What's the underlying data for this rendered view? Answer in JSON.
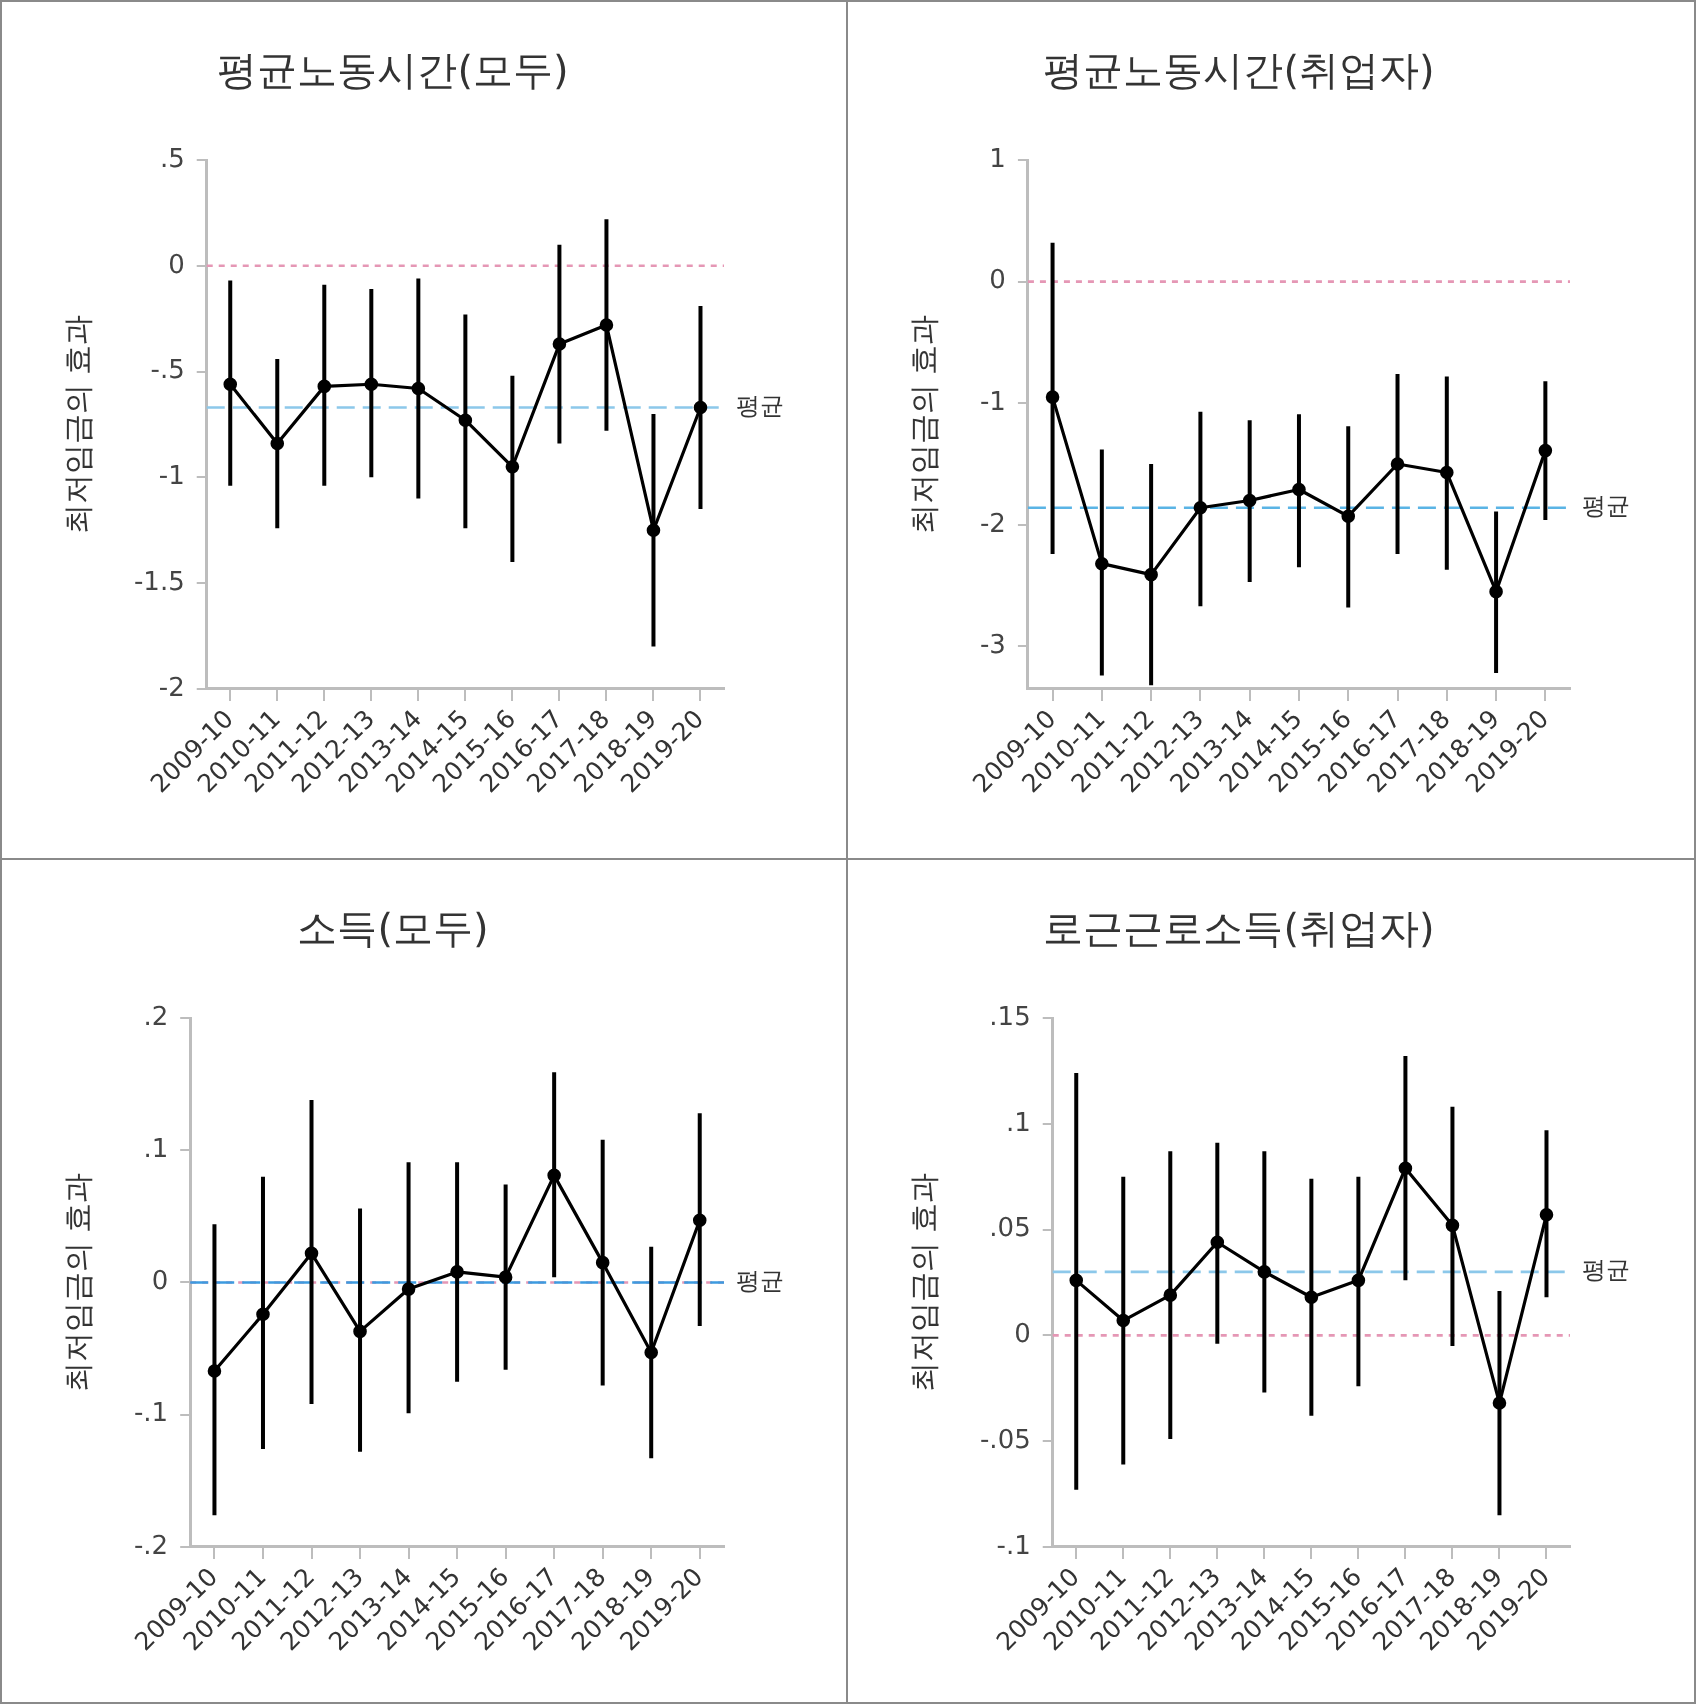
{
  "chart_data": [
    {
      "type": "line",
      "title": "평균노동시간(모두)",
      "ylabel": "최저임금의 효과",
      "categories": [
        "2009-10",
        "2010-11",
        "2011-12",
        "2012-13",
        "2013-14",
        "2014-15",
        "2015-16",
        "2016-17",
        "2017-18",
        "2018-19",
        "2019-20"
      ],
      "series": [
        {
          "color": "#000000",
          "values": [
            -0.56,
            -0.84,
            -0.57,
            -0.56,
            -0.58,
            -0.73,
            -0.95,
            -0.37,
            -0.28,
            -1.25,
            -0.67
          ],
          "errors": [
            [
              -1.04,
              -0.07
            ],
            [
              -1.24,
              -0.44
            ],
            [
              -1.04,
              -0.09
            ],
            [
              -1.0,
              -0.11
            ],
            [
              -1.1,
              -0.06
            ],
            [
              -1.24,
              -0.23
            ],
            [
              -1.4,
              -0.52
            ],
            [
              -0.84,
              0.1
            ],
            [
              -0.78,
              0.22
            ],
            [
              -1.8,
              -0.7
            ],
            [
              -1.15,
              -0.19
            ]
          ]
        }
      ],
      "ylim": [
        -2,
        0.5
      ],
      "yticks": [
        {
          "value": 0.5,
          "label": ".5"
        },
        0,
        {
          "value": -0.5,
          "label": "-.5"
        },
        -1,
        -1.5,
        -2
      ],
      "marker": "circle",
      "ref_lines": [
        {
          "axis": "y",
          "value": 0,
          "color": "#e597b5",
          "line_style": "dotted"
        },
        {
          "axis": "y",
          "value": -0.67,
          "label": "평균",
          "color": "#8cc8ea",
          "line_style": "dashed"
        }
      ]
    },
    {
      "type": "line",
      "title": "평균노동시간(취업자)",
      "ylabel": "최저임금의 효과",
      "categories": [
        "2009-10",
        "2010-11",
        "2011-12",
        "2012-13",
        "2013-14",
        "2014-15",
        "2015-16",
        "2016-17",
        "2017-18",
        "2018-19",
        "2019-20"
      ],
      "series": [
        {
          "color": "#000000",
          "values": [
            -0.95,
            -2.32,
            -2.41,
            -1.86,
            -1.8,
            -1.71,
            -1.93,
            -1.5,
            -1.57,
            -2.55,
            -1.39
          ],
          "errors": [
            [
              -2.24,
              0.32
            ],
            [
              -3.24,
              -1.38
            ],
            [
              -3.32,
              -1.5
            ],
            [
              -2.67,
              -1.07
            ],
            [
              -2.47,
              -1.14
            ],
            [
              -2.35,
              -1.09
            ],
            [
              -2.68,
              -1.19
            ],
            [
              -2.24,
              -0.76
            ],
            [
              -2.37,
              -0.78
            ],
            [
              -3.22,
              -1.89
            ],
            [
              -1.96,
              -0.82
            ]
          ]
        }
      ],
      "ylim": [
        -3.35,
        1
      ],
      "yticks": [
        1,
        0,
        -1,
        -2,
        -3
      ],
      "marker": "circle",
      "ref_lines": [
        {
          "axis": "y",
          "value": 0,
          "color": "#e597b5",
          "line_style": "dotted"
        },
        {
          "axis": "y",
          "value": -1.86,
          "label": "평균",
          "color": "#5ab4e5",
          "line_style": "dashed"
        }
      ]
    },
    {
      "type": "line",
      "title": "소득(모두)",
      "ylabel": "최저임금의 효과",
      "categories": [
        "2009-10",
        "2010-11",
        "2011-12",
        "2012-13",
        "2013-14",
        "2014-15",
        "2015-16",
        "2016-17",
        "2017-18",
        "2018-19",
        "2019-20"
      ],
      "series": [
        {
          "color": "#000000",
          "values": [
            -0.067,
            -0.024,
            0.022,
            -0.037,
            -0.005,
            0.008,
            0.004,
            0.081,
            0.015,
            -0.053,
            0.047
          ],
          "errors": [
            [
              -0.176,
              0.044
            ],
            [
              -0.126,
              0.08
            ],
            [
              -0.092,
              0.138
            ],
            [
              -0.128,
              0.056
            ],
            [
              -0.099,
              0.091
            ],
            [
              -0.075,
              0.091
            ],
            [
              -0.066,
              0.074
            ],
            [
              0.004,
              0.159
            ],
            [
              -0.078,
              0.108
            ],
            [
              -0.133,
              0.027
            ],
            [
              -0.033,
              0.128
            ]
          ]
        }
      ],
      "ylim": [
        -0.2,
        0.2
      ],
      "yticks": [
        {
          "value": 0.2,
          "label": ".2"
        },
        {
          "value": 0.1,
          "label": ".1"
        },
        0,
        {
          "value": -0.1,
          "label": "-.1"
        },
        {
          "value": -0.2,
          "label": "-.2"
        }
      ],
      "marker": "circle",
      "ref_lines": [
        {
          "axis": "y",
          "value": 0,
          "color": "#e597b5",
          "line_style": "dotted"
        },
        {
          "axis": "y",
          "value": 0,
          "label": "평균",
          "color": "#3c9be0",
          "line_style": "dashed"
        }
      ]
    },
    {
      "type": "line",
      "title": "로근근로소득(취업자)",
      "ylabel": "최저임금의 효과",
      "categories": [
        "2009-10",
        "2010-11",
        "2011-12",
        "2012-13",
        "2013-14",
        "2014-15",
        "2015-16",
        "2016-17",
        "2017-18",
        "2018-19",
        "2019-20"
      ],
      "series": [
        {
          "color": "#000000",
          "values": [
            0.026,
            0.007,
            0.019,
            0.044,
            0.03,
            0.018,
            0.026,
            0.079,
            0.052,
            -0.032,
            0.057
          ],
          "errors": [
            [
              -0.073,
              0.124
            ],
            [
              -0.061,
              0.075
            ],
            [
              -0.049,
              0.087
            ],
            [
              -0.004,
              0.091
            ],
            [
              -0.027,
              0.087
            ],
            [
              -0.038,
              0.074
            ],
            [
              -0.024,
              0.075
            ],
            [
              0.026,
              0.132
            ],
            [
              -0.005,
              0.108
            ],
            [
              -0.085,
              0.021
            ],
            [
              0.018,
              0.097
            ]
          ]
        }
      ],
      "ylim": [
        -0.1,
        0.15
      ],
      "yticks": [
        {
          "value": 0.15,
          "label": ".15"
        },
        {
          "value": 0.1,
          "label": ".1"
        },
        {
          "value": 0.05,
          "label": ".05"
        },
        0,
        {
          "value": -0.05,
          "label": "-.05"
        },
        {
          "value": -0.1,
          "label": "-.1"
        }
      ],
      "marker": "circle",
      "ref_lines": [
        {
          "axis": "y",
          "value": 0,
          "color": "#e597b5",
          "line_style": "dotted"
        },
        {
          "axis": "y",
          "value": 0.03,
          "label": "평균",
          "color": "#8cc8ea",
          "line_style": "dashed"
        }
      ]
    }
  ]
}
